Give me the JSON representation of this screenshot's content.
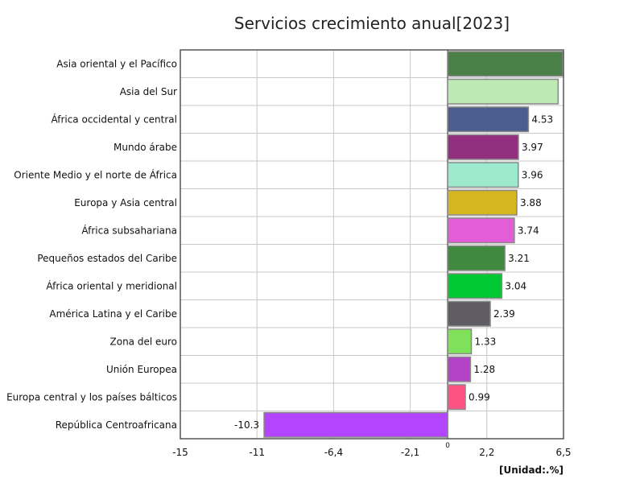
{
  "chart_data": {
    "type": "bar",
    "orientation": "horizontal",
    "title": "Servicios crecimiento anual[2023]",
    "unit_label": "[Unidad:.%]",
    "xlim": [
      -15,
      6.5
    ],
    "x_ticks": [
      "-15",
      "-11",
      "-6,4",
      "-2,1",
      "2,2",
      "6,5"
    ],
    "x_tick_values": [
      -15,
      -10.7,
      -6.4,
      -2.1,
      2.2,
      6.5
    ],
    "zero_label": "0",
    "grid": true,
    "categories": [
      "Asia oriental y el Pacífico",
      "Asia del Sur",
      "África occidental y central",
      "Mundo árabe",
      "Oriente Medio y el norte de África",
      "Europa y Asia central",
      "África subsahariana",
      "Pequeños estados del Caribe",
      "África oriental y meridional",
      "América Latina y el Caribe",
      "Zona del euro",
      "Unión Europea",
      "Europa central y los países bálticos",
      "República Centroafricana"
    ],
    "values": [
      6.45,
      6.2,
      4.53,
      3.97,
      3.96,
      3.88,
      3.74,
      3.21,
      3.04,
      2.39,
      1.33,
      1.28,
      0.99,
      -10.3
    ],
    "value_labels": [
      "",
      "",
      "4.53",
      "3.97",
      "3.96",
      "3.88",
      "3.74",
      "3.21",
      "3.04",
      "2.39",
      "1.33",
      "1.28",
      "0.99",
      "-10.3"
    ],
    "colors": [
      "#4a7f47",
      "#bde9b2",
      "#4b5d8c",
      "#932f7f",
      "#9de9cd",
      "#d5b520",
      "#e35dd8",
      "#3f8a3e",
      "#00c832",
      "#5f5c66",
      "#7fe05a",
      "#b343c7",
      "#fc5382",
      "#b445ff"
    ]
  }
}
